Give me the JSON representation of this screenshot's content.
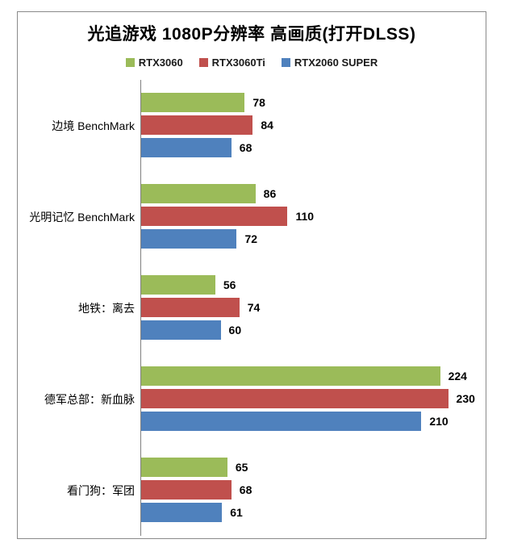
{
  "chart": {
    "frame_border_color": "#8a8a8a",
    "axis_line_color": "#808080",
    "background": "#ffffff",
    "title_color": "#000000"
  },
  "chart_data": {
    "type": "bar",
    "orientation": "horizontal",
    "title": "光追游戏 1080P分辨率 高画质(打开DLSS)",
    "xlabel": "",
    "ylabel": "",
    "categories": [
      "边境 BenchMark",
      "光明记忆 BenchMark",
      "地铁：离去",
      "德军总部：新血脉",
      "看门狗：军团"
    ],
    "series": [
      {
        "name": "RTX3060",
        "color": "#9BBB59",
        "values": [
          78,
          86,
          56,
          224,
          65
        ]
      },
      {
        "name": "RTX3060Ti",
        "color": "#C0504D",
        "values": [
          84,
          110,
          74,
          230,
          68
        ]
      },
      {
        "name": "RTX2060 SUPER",
        "color": "#4F81BD",
        "values": [
          68,
          72,
          60,
          210,
          61
        ]
      }
    ],
    "value_axis": {
      "min": 0,
      "max": 258,
      "visible": false
    },
    "category_axis": {
      "visible": true
    },
    "grid": false,
    "legend_position": "top",
    "data_labels": true
  }
}
